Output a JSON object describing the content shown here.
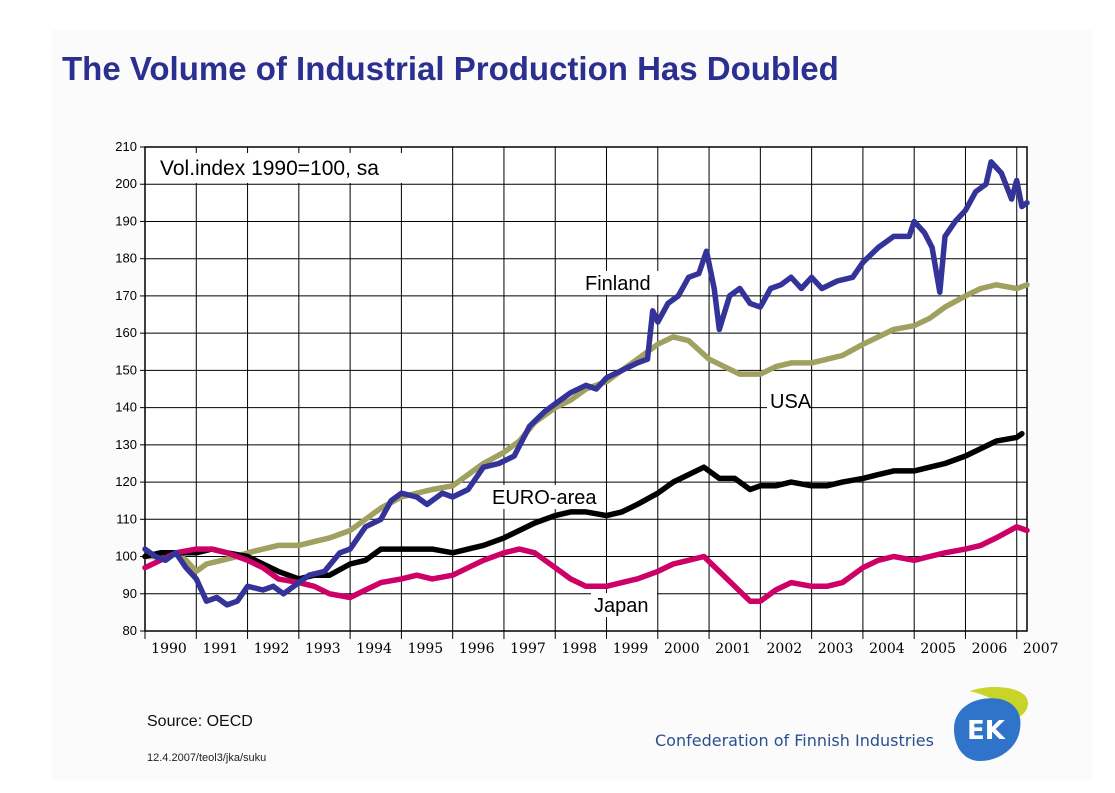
{
  "slide": {
    "title": "The Volume of Industrial Production Has Doubled",
    "source": "Source: OECD",
    "reference": "12.4.2007/teol3/jka/suku",
    "organization": "Confederation of Finnish Industries",
    "logo_text": "EK"
  },
  "chart_data": {
    "type": "line",
    "title": "",
    "annotation": "Vol.index 1990=100, sa",
    "xlabel": "",
    "ylabel": "",
    "xlim": [
      1990,
      2007.2
    ],
    "ylim": [
      80,
      210
    ],
    "y_ticks": [
      80,
      90,
      100,
      110,
      120,
      130,
      140,
      150,
      160,
      170,
      180,
      190,
      200,
      210
    ],
    "x_tick_labels": [
      "1990",
      "1991",
      "1992",
      "1993",
      "1994",
      "1995",
      "1996",
      "1997",
      "1998",
      "1999",
      "2000",
      "2001",
      "2002",
      "2003",
      "2004",
      "2005",
      "2006",
      "2007"
    ],
    "grid": true,
    "series": [
      {
        "name": "Finland",
        "color": "#333399",
        "points": [
          [
            1990.0,
            102
          ],
          [
            1990.2,
            100
          ],
          [
            1990.4,
            99
          ],
          [
            1990.6,
            101
          ],
          [
            1990.8,
            97
          ],
          [
            1991.0,
            94
          ],
          [
            1991.2,
            88
          ],
          [
            1991.4,
            89
          ],
          [
            1991.6,
            87
          ],
          [
            1991.8,
            88
          ],
          [
            1992.0,
            92
          ],
          [
            1992.3,
            91
          ],
          [
            1992.5,
            92
          ],
          [
            1992.7,
            90
          ],
          [
            1993.0,
            93
          ],
          [
            1993.2,
            95
          ],
          [
            1993.5,
            96
          ],
          [
            1993.8,
            101
          ],
          [
            1994.0,
            102
          ],
          [
            1994.3,
            108
          ],
          [
            1994.6,
            110
          ],
          [
            1994.8,
            115
          ],
          [
            1995.0,
            117
          ],
          [
            1995.3,
            116
          ],
          [
            1995.5,
            114
          ],
          [
            1995.8,
            117
          ],
          [
            1996.0,
            116
          ],
          [
            1996.3,
            118
          ],
          [
            1996.6,
            124
          ],
          [
            1996.9,
            125
          ],
          [
            1997.2,
            127
          ],
          [
            1997.5,
            135
          ],
          [
            1997.8,
            139
          ],
          [
            1998.0,
            141
          ],
          [
            1998.3,
            144
          ],
          [
            1998.6,
            146
          ],
          [
            1998.8,
            145
          ],
          [
            1999.0,
            148
          ],
          [
            1999.3,
            150
          ],
          [
            1999.6,
            152
          ],
          [
            1999.8,
            153
          ],
          [
            1999.9,
            166
          ],
          [
            2000.0,
            163
          ],
          [
            2000.2,
            168
          ],
          [
            2000.4,
            170
          ],
          [
            2000.6,
            175
          ],
          [
            2000.8,
            176
          ],
          [
            2000.95,
            182
          ],
          [
            2001.1,
            172
          ],
          [
            2001.2,
            161
          ],
          [
            2001.4,
            170
          ],
          [
            2001.6,
            172
          ],
          [
            2001.8,
            168
          ],
          [
            2002.0,
            167
          ],
          [
            2002.2,
            172
          ],
          [
            2002.4,
            173
          ],
          [
            2002.6,
            175
          ],
          [
            2002.8,
            172
          ],
          [
            2003.0,
            175
          ],
          [
            2003.2,
            172
          ],
          [
            2003.5,
            174
          ],
          [
            2003.8,
            175
          ],
          [
            2004.0,
            179
          ],
          [
            2004.3,
            183
          ],
          [
            2004.6,
            186
          ],
          [
            2004.9,
            186
          ],
          [
            2005.0,
            190
          ],
          [
            2005.2,
            187
          ],
          [
            2005.35,
            183
          ],
          [
            2005.5,
            171
          ],
          [
            2005.6,
            186
          ],
          [
            2005.8,
            190
          ],
          [
            2006.0,
            193
          ],
          [
            2006.2,
            198
          ],
          [
            2006.4,
            200
          ],
          [
            2006.5,
            206
          ],
          [
            2006.7,
            203
          ],
          [
            2006.9,
            196
          ],
          [
            2007.0,
            201
          ],
          [
            2007.1,
            194
          ],
          [
            2007.2,
            195
          ]
        ]
      },
      {
        "name": "USA",
        "color": "#a0a060",
        "points": [
          [
            1990.0,
            100
          ],
          [
            1990.3,
            100
          ],
          [
            1990.6,
            101
          ],
          [
            1990.8,
            99
          ],
          [
            1991.0,
            96
          ],
          [
            1991.2,
            98
          ],
          [
            1991.5,
            99
          ],
          [
            1991.8,
            100
          ],
          [
            1992.0,
            101
          ],
          [
            1992.3,
            102
          ],
          [
            1992.6,
            103
          ],
          [
            1993.0,
            103
          ],
          [
            1993.3,
            104
          ],
          [
            1993.6,
            105
          ],
          [
            1994.0,
            107
          ],
          [
            1994.3,
            110
          ],
          [
            1994.6,
            113
          ],
          [
            1995.0,
            116
          ],
          [
            1995.3,
            117
          ],
          [
            1995.6,
            118
          ],
          [
            1996.0,
            119
          ],
          [
            1996.3,
            122
          ],
          [
            1996.6,
            125
          ],
          [
            1997.0,
            128
          ],
          [
            1997.3,
            131
          ],
          [
            1997.6,
            136
          ],
          [
            1998.0,
            140
          ],
          [
            1998.3,
            142
          ],
          [
            1998.6,
            145
          ],
          [
            1999.0,
            147
          ],
          [
            1999.3,
            150
          ],
          [
            1999.6,
            153
          ],
          [
            2000.0,
            157
          ],
          [
            2000.3,
            159
          ],
          [
            2000.6,
            158
          ],
          [
            2001.0,
            153
          ],
          [
            2001.3,
            151
          ],
          [
            2001.6,
            149
          ],
          [
            2002.0,
            149
          ],
          [
            2002.3,
            151
          ],
          [
            2002.6,
            152
          ],
          [
            2003.0,
            152
          ],
          [
            2003.3,
            153
          ],
          [
            2003.6,
            154
          ],
          [
            2004.0,
            157
          ],
          [
            2004.3,
            159
          ],
          [
            2004.6,
            161
          ],
          [
            2005.0,
            162
          ],
          [
            2005.3,
            164
          ],
          [
            2005.6,
            167
          ],
          [
            2006.0,
            170
          ],
          [
            2006.3,
            172
          ],
          [
            2006.6,
            173
          ],
          [
            2007.0,
            172
          ],
          [
            2007.2,
            173
          ]
        ]
      },
      {
        "name": "EURO-area",
        "color": "#000000",
        "points": [
          [
            1990.0,
            100
          ],
          [
            1990.3,
            101
          ],
          [
            1990.6,
            101
          ],
          [
            1991.0,
            101
          ],
          [
            1991.3,
            102
          ],
          [
            1991.6,
            101
          ],
          [
            1992.0,
            100
          ],
          [
            1992.3,
            98
          ],
          [
            1992.6,
            96
          ],
          [
            1993.0,
            94
          ],
          [
            1993.3,
            95
          ],
          [
            1993.6,
            95
          ],
          [
            1994.0,
            98
          ],
          [
            1994.3,
            99
          ],
          [
            1994.6,
            102
          ],
          [
            1995.0,
            102
          ],
          [
            1995.3,
            102
          ],
          [
            1995.6,
            102
          ],
          [
            1996.0,
            101
          ],
          [
            1996.3,
            102
          ],
          [
            1996.6,
            103
          ],
          [
            1997.0,
            105
          ],
          [
            1997.3,
            107
          ],
          [
            1997.6,
            109
          ],
          [
            1998.0,
            111
          ],
          [
            1998.3,
            112
          ],
          [
            1998.6,
            112
          ],
          [
            1999.0,
            111
          ],
          [
            1999.3,
            112
          ],
          [
            1999.6,
            114
          ],
          [
            2000.0,
            117
          ],
          [
            2000.3,
            120
          ],
          [
            2000.6,
            122
          ],
          [
            2000.9,
            124
          ],
          [
            2001.2,
            121
          ],
          [
            2001.5,
            121
          ],
          [
            2001.8,
            118
          ],
          [
            2002.0,
            119
          ],
          [
            2002.3,
            119
          ],
          [
            2002.6,
            120
          ],
          [
            2003.0,
            119
          ],
          [
            2003.3,
            119
          ],
          [
            2003.6,
            120
          ],
          [
            2004.0,
            121
          ],
          [
            2004.3,
            122
          ],
          [
            2004.6,
            123
          ],
          [
            2005.0,
            123
          ],
          [
            2005.3,
            124
          ],
          [
            2005.6,
            125
          ],
          [
            2006.0,
            127
          ],
          [
            2006.3,
            129
          ],
          [
            2006.6,
            131
          ],
          [
            2007.0,
            132
          ],
          [
            2007.1,
            133
          ]
        ]
      },
      {
        "name": "Japan",
        "color": "#cc0066",
        "points": [
          [
            1990.0,
            97
          ],
          [
            1990.3,
            99
          ],
          [
            1990.6,
            101
          ],
          [
            1991.0,
            102
          ],
          [
            1991.3,
            102
          ],
          [
            1991.6,
            101
          ],
          [
            1992.0,
            99
          ],
          [
            1992.3,
            97
          ],
          [
            1992.6,
            94
          ],
          [
            1993.0,
            93
          ],
          [
            1993.3,
            92
          ],
          [
            1993.6,
            90
          ],
          [
            1994.0,
            89
          ],
          [
            1994.3,
            91
          ],
          [
            1994.6,
            93
          ],
          [
            1995.0,
            94
          ],
          [
            1995.3,
            95
          ],
          [
            1995.6,
            94
          ],
          [
            1996.0,
            95
          ],
          [
            1996.3,
            97
          ],
          [
            1996.6,
            99
          ],
          [
            1997.0,
            101
          ],
          [
            1997.3,
            102
          ],
          [
            1997.6,
            101
          ],
          [
            1998.0,
            97
          ],
          [
            1998.3,
            94
          ],
          [
            1998.6,
            92
          ],
          [
            1999.0,
            92
          ],
          [
            1999.3,
            93
          ],
          [
            1999.6,
            94
          ],
          [
            2000.0,
            96
          ],
          [
            2000.3,
            98
          ],
          [
            2000.6,
            99
          ],
          [
            2000.9,
            100
          ],
          [
            2001.2,
            96
          ],
          [
            2001.5,
            92
          ],
          [
            2001.8,
            88
          ],
          [
            2002.0,
            88
          ],
          [
            2002.3,
            91
          ],
          [
            2002.6,
            93
          ],
          [
            2003.0,
            92
          ],
          [
            2003.3,
            92
          ],
          [
            2003.6,
            93
          ],
          [
            2004.0,
            97
          ],
          [
            2004.3,
            99
          ],
          [
            2004.6,
            100
          ],
          [
            2005.0,
            99
          ],
          [
            2005.3,
            100
          ],
          [
            2005.6,
            101
          ],
          [
            2006.0,
            102
          ],
          [
            2006.3,
            103
          ],
          [
            2006.6,
            105
          ],
          [
            2007.0,
            108
          ],
          [
            2007.2,
            107
          ]
        ]
      }
    ]
  }
}
